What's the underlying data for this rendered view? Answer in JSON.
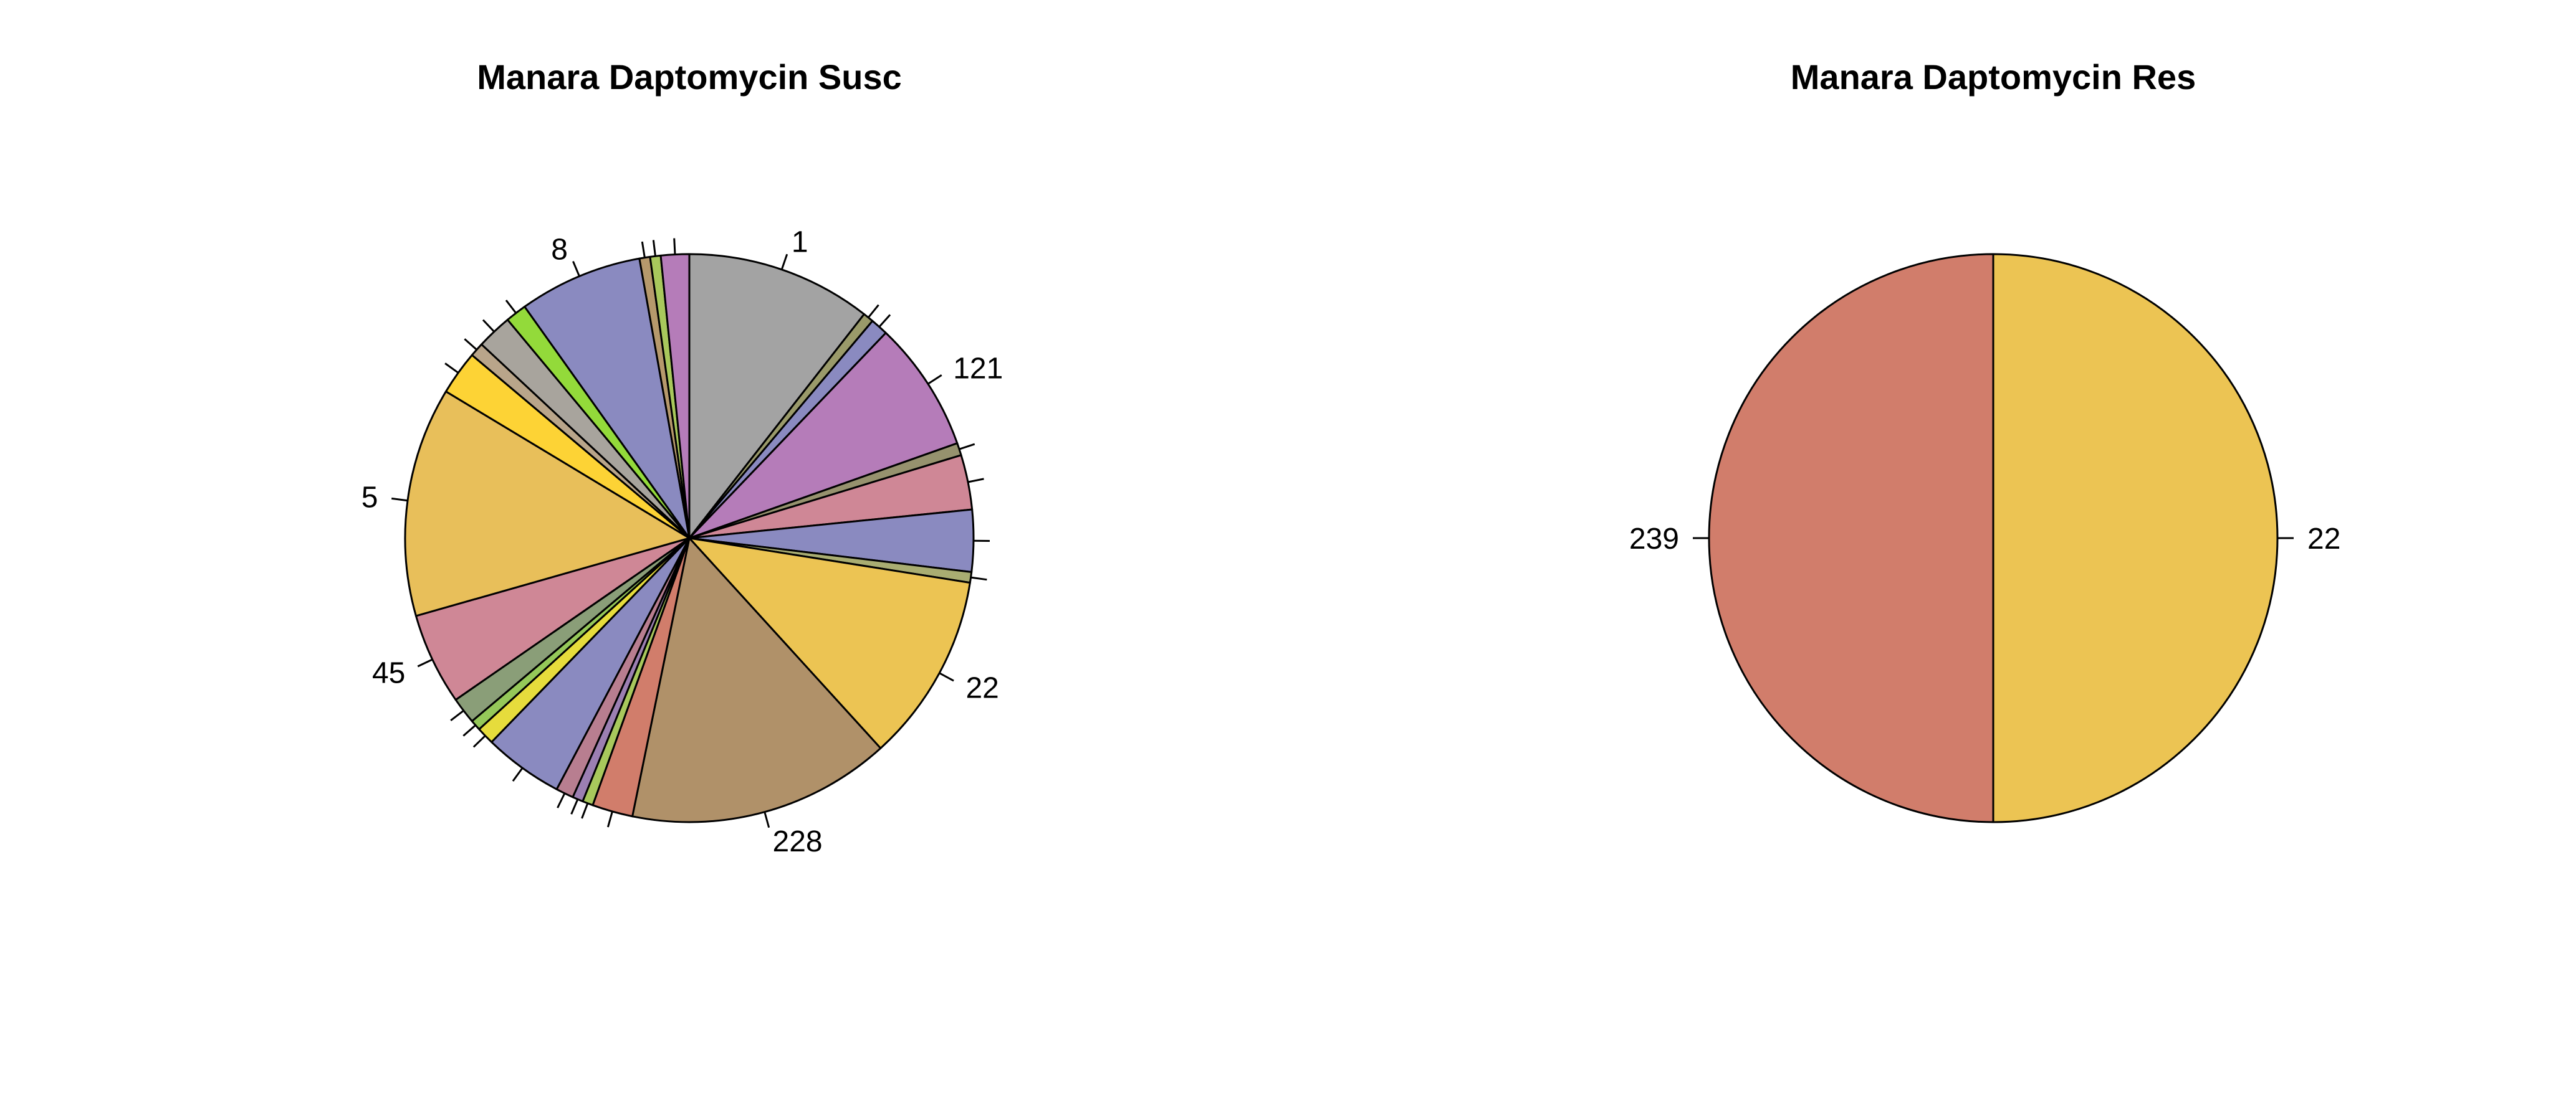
{
  "chart_data": [
    {
      "type": "pie",
      "title": "Manara Daptomycin Susc",
      "start": "12 o'clock",
      "direction": "clockwise",
      "slices": [
        {
          "label": "1",
          "value": 10.5,
          "color": "#a3a3a3"
        },
        {
          "label": "",
          "value": 0.6,
          "color": "#9a9a6a"
        },
        {
          "label": "",
          "value": 1.0,
          "color": "#8a8ac0"
        },
        {
          "label": "121",
          "value": 7.4,
          "color": "#b57cb9"
        },
        {
          "label": "",
          "value": 0.7,
          "color": "#96926e"
        },
        {
          "label": "",
          "value": 3.1,
          "color": "#cf8796"
        },
        {
          "label": "",
          "value": 3.5,
          "color": "#8a8ac0"
        },
        {
          "label": "",
          "value": 0.6,
          "color": "#a9ad72"
        },
        {
          "label": "22",
          "value": 10.7,
          "color": "#ecc453"
        },
        {
          "label": "228",
          "value": 14.9,
          "color": "#b09169"
        },
        {
          "label": "",
          "value": 2.3,
          "color": "#d17d6b"
        },
        {
          "label": "",
          "value": 0.6,
          "color": "#a8c85c"
        },
        {
          "label": "",
          "value": 0.6,
          "color": "#9c7fb2"
        },
        {
          "label": "",
          "value": 1.0,
          "color": "#b87e90"
        },
        {
          "label": "",
          "value": 4.5,
          "color": "#8a8ac0"
        },
        {
          "label": "",
          "value": 1.0,
          "color": "#e6dc3c"
        },
        {
          "label": "",
          "value": 0.6,
          "color": "#95c859"
        },
        {
          "label": "",
          "value": 1.5,
          "color": "#8a9e78"
        },
        {
          "label": "45",
          "value": 5.2,
          "color": "#cf8796"
        },
        {
          "label": "5",
          "value": 13.0,
          "color": "#e8bf5a"
        },
        {
          "label": "",
          "value": 2.5,
          "color": "#fdd335"
        },
        {
          "label": "",
          "value": 0.8,
          "color": "#b9a58a"
        },
        {
          "label": "",
          "value": 2.0,
          "color": "#a8a49d"
        },
        {
          "label": "",
          "value": 1.2,
          "color": "#93da3a"
        },
        {
          "label": "8",
          "value": 7.0,
          "color": "#8a8ac0"
        },
        {
          "label": "",
          "value": 0.6,
          "color": "#b6996c"
        },
        {
          "label": "",
          "value": 0.6,
          "color": "#a8c85c"
        },
        {
          "label": "",
          "value": 1.6,
          "color": "#b57cb9"
        }
      ]
    },
    {
      "type": "pie",
      "title": "Manara Daptomycin Res",
      "start": "12 o'clock",
      "direction": "clockwise",
      "slices": [
        {
          "label": "22",
          "value": 50,
          "color": "#ecc453"
        },
        {
          "label": "239",
          "value": 50,
          "color": "#d17d6b"
        }
      ]
    }
  ]
}
